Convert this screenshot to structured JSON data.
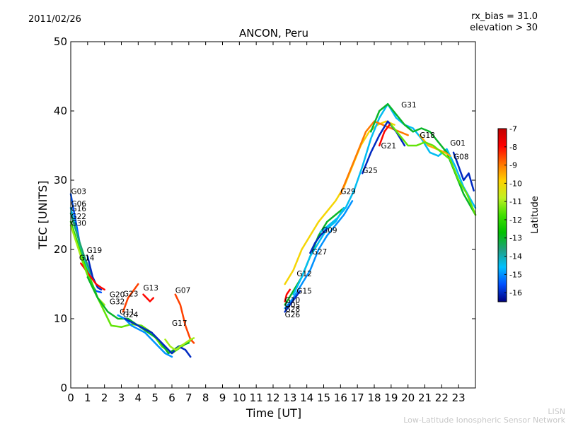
{
  "chart_data": {
    "type": "line",
    "title": "ANCON, Peru",
    "date": "2011/02/26",
    "rx_bias": "rx_bias = 31.0",
    "elevation": "elevation > 30",
    "xlabel": "Time [UT]",
    "ylabel": "TEC [UNITS]",
    "xlim": [
      0,
      24
    ],
    "ylim": [
      0,
      50
    ],
    "xticks": [
      "0",
      "1",
      "2",
      "3",
      "4",
      "5",
      "6",
      "7",
      "8",
      "9",
      "10",
      "11",
      "12",
      "13",
      "14",
      "15",
      "16",
      "17",
      "18",
      "19",
      "20",
      "21",
      "22",
      "23"
    ],
    "yticks": [
      "0",
      "10",
      "20",
      "30",
      "40",
      "50"
    ],
    "colorbar": {
      "label": "Latitude",
      "range": [
        -16.5,
        -7
      ],
      "ticks": [
        "-7",
        "-8",
        "-9",
        "-10",
        "-11",
        "-12",
        "-13",
        "-14",
        "-15",
        "-16"
      ],
      "colors": [
        "#00007f",
        "#0050ff",
        "#00c0ff",
        "#20a080",
        "#00c000",
        "#40e000",
        "#c0f020",
        "#ffd000",
        "#ff7000",
        "#ff0000",
        "#c00000"
      ]
    },
    "series": [
      {
        "name": "G03",
        "lat": -15.5,
        "label_pos": [
          0.02,
          28
        ],
        "x": [
          0,
          0.3,
          0.6,
          0.9,
          1.2,
          1.5,
          1.8
        ],
        "y": [
          28,
          24,
          20,
          17,
          15,
          14,
          13.8
        ]
      },
      {
        "name": "G06",
        "lat": -14.5,
        "label_pos": [
          0.02,
          26.2
        ],
        "x": [
          0,
          0.3,
          0.6,
          0.9,
          1.2
        ],
        "y": [
          26,
          23,
          20,
          18,
          16
        ]
      },
      {
        "name": "G16",
        "lat": -13.5,
        "label_pos": [
          0.02,
          25.5
        ],
        "x": [
          0,
          0.4,
          0.8,
          1.2
        ],
        "y": [
          25.2,
          22,
          19,
          16.5
        ]
      },
      {
        "name": "G22",
        "lat": -12,
        "label_pos": [
          0.02,
          24.4
        ],
        "x": [
          0,
          0.4,
          0.8,
          1.2,
          1.6
        ],
        "y": [
          24,
          21,
          18,
          15.5,
          13
        ]
      },
      {
        "name": "G30",
        "lat": -11,
        "label_pos": [
          0.02,
          23.4
        ],
        "x": [
          0,
          0.4,
          0.8,
          1.2,
          1.6,
          2.0
        ],
        "y": [
          23.5,
          20.5,
          17.5,
          15,
          13,
          12
        ]
      },
      {
        "name": "G19",
        "lat": -16,
        "label_pos": [
          0.95,
          19.5
        ],
        "x": [
          1.0,
          1.3,
          1.6,
          1.8
        ],
        "y": [
          19,
          16,
          14.5,
          14.2
        ]
      },
      {
        "name": "G14",
        "lat": -8,
        "label_pos": [
          0.5,
          18.4
        ],
        "x": [
          0.6,
          0.9,
          1.2,
          1.5,
          1.8,
          2.0
        ],
        "y": [
          18,
          17,
          16,
          15,
          14.5,
          14.2
        ]
      },
      {
        "name": "G20",
        "lat": -11.5,
        "label_pos": [
          2.3,
          13.1
        ],
        "x": [
          0.6,
          1.2,
          1.8,
          2.4,
          3.0,
          3.6,
          4.2,
          4.8,
          5.4,
          6.0,
          6.6,
          7.2
        ],
        "y": [
          19,
          15,
          12,
          9,
          8.8,
          9.2,
          9,
          8,
          6,
          5,
          6,
          7
        ]
      },
      {
        "name": "G32",
        "lat": -13,
        "label_pos": [
          2.3,
          12.1
        ],
        "x": [
          1.0,
          1.6,
          2.2,
          2.8,
          3.4,
          4.0,
          4.6,
          5.2,
          5.8,
          6.4,
          7.0
        ],
        "y": [
          16,
          13,
          11,
          10,
          10,
          9,
          8,
          7,
          5,
          6,
          6.5
        ]
      },
      {
        "name": "G23",
        "lat": -8.5,
        "label_pos": [
          3.1,
          13.2
        ],
        "x": [
          3.1,
          3.4,
          3.7,
          4.0
        ],
        "y": [
          11,
          13,
          14,
          15
        ]
      },
      {
        "name": "G13",
        "lat": -8,
        "label_pos": [
          4.3,
          14.1
        ],
        "x": [
          4.3,
          4.5,
          4.7,
          4.9
        ],
        "y": [
          13.5,
          13,
          12.5,
          13
        ]
      },
      {
        "name": "G11",
        "lat": -15,
        "label_pos": [
          2.9,
          10.6
        ],
        "x": [
          2.8,
          3.2,
          3.6,
          4.0,
          4.4,
          4.8,
          5.2,
          5.6,
          6.0
        ],
        "y": [
          10.5,
          10,
          9,
          8.5,
          8,
          7,
          6,
          5,
          4.5
        ]
      },
      {
        "name": "G24",
        "lat": -16,
        "label_pos": [
          3.1,
          10.2
        ],
        "x": [
          3.2,
          3.6,
          4.0,
          4.4,
          4.8,
          5.2,
          5.6,
          6.0,
          6.4,
          6.8,
          7.1
        ],
        "y": [
          10,
          9.5,
          9,
          8.5,
          8,
          7,
          6,
          5,
          6,
          5.5,
          4.5
        ]
      },
      {
        "name": "G07",
        "lat": -8.5,
        "label_pos": [
          6.2,
          13.7
        ],
        "x": [
          6.2,
          6.5,
          6.8,
          7.1,
          7.3
        ],
        "y": [
          13.5,
          12,
          9,
          7,
          6.5
        ]
      },
      {
        "name": "G17",
        "lat": -11,
        "label_pos": [
          6.0,
          9.0
        ],
        "x": [
          5.6,
          5.9,
          6.2,
          6.5,
          6.8,
          7.1,
          7.3
        ],
        "y": [
          7,
          6,
          5.5,
          6,
          6.5,
          7,
          7.2
        ]
      },
      {
        "name": "G10",
        "lat": -8,
        "label_pos": [
          12.7,
          12.3
        ],
        "x": [
          12.7,
          12.8,
          13.0
        ],
        "y": [
          12.5,
          13.5,
          14.2
        ]
      },
      {
        "name": "G05",
        "lat": -13,
        "label_pos": [
          12.7,
          11.6
        ],
        "x": [
          12.7,
          13.2,
          13.7,
          14.2,
          14.7,
          15.2,
          15.7,
          16.2
        ],
        "y": [
          12,
          14,
          16,
          19,
          22,
          24,
          25,
          26
        ]
      },
      {
        "name": "G28",
        "lat": -15,
        "label_pos": [
          12.7,
          11.0
        ],
        "x": [
          12.7,
          13.2,
          13.7,
          14.2,
          14.7,
          15.2,
          15.7,
          16.2,
          16.7
        ],
        "y": [
          11.5,
          13,
          15,
          17,
          20,
          22,
          23.5,
          25,
          27
        ]
      },
      {
        "name": "G26",
        "lat": -16,
        "label_pos": [
          12.7,
          10.2
        ],
        "x": [
          12.7,
          13.0,
          13.3,
          13.6
        ],
        "y": [
          11,
          12,
          13,
          14
        ]
      },
      {
        "name": "G12",
        "lat": -10,
        "label_pos": [
          13.4,
          16.1
        ],
        "x": [
          12.7,
          13.2,
          13.7,
          14.2,
          14.7,
          15.2,
          15.7,
          16.2,
          16.7,
          17.2,
          17.7,
          18.2,
          18.7,
          19.2
        ],
        "y": [
          15,
          17,
          20,
          22,
          24,
          25.5,
          27,
          29,
          32,
          35,
          37,
          38,
          38.5,
          38
        ]
      },
      {
        "name": "G15",
        "lat": -14.5,
        "label_pos": [
          13.4,
          13.6
        ],
        "x": [
          13.2,
          13.7,
          14.2,
          14.7,
          15.2,
          15.7,
          16.2
        ],
        "y": [
          13.5,
          16,
          19,
          21,
          23,
          24,
          26
        ]
      },
      {
        "name": "G27",
        "lat": -16,
        "label_pos": [
          14.3,
          19.3
        ],
        "x": [
          14.2,
          14.5,
          14.8,
          15.2
        ],
        "y": [
          19.5,
          21,
          22,
          23
        ]
      },
      {
        "name": "G09",
        "lat": -14.5,
        "label_pos": [
          14.9,
          22.4
        ],
        "x": [
          14.8,
          15.3,
          15.8,
          16.3,
          16.8,
          17.3,
          17.8,
          18.3,
          18.8,
          19.3,
          19.8,
          20.3,
          20.8,
          21.3,
          21.8,
          22.3,
          22.8,
          23.3,
          24.0
        ],
        "y": [
          22.5,
          23.5,
          24.5,
          26,
          28.5,
          32,
          36,
          39,
          41,
          39,
          38,
          37.5,
          36,
          34,
          33.5,
          34.5,
          32,
          29,
          26
        ]
      },
      {
        "name": "G29",
        "lat": -9,
        "label_pos": [
          16.0,
          28.0
        ],
        "x": [
          16.0,
          16.5,
          17.0,
          17.5,
          18.0,
          18.5,
          19.0,
          19.5,
          20.0
        ],
        "y": [
          28,
          31,
          34,
          37,
          38.5,
          38,
          37.5,
          37,
          36.5
        ]
      },
      {
        "name": "G25",
        "lat": -16,
        "label_pos": [
          17.3,
          31.0
        ],
        "x": [
          17.3,
          17.8,
          18.3,
          18.8,
          19.3,
          19.8
        ],
        "y": [
          31,
          34,
          36.5,
          38.5,
          37,
          35
        ]
      },
      {
        "name": "G21",
        "lat": -8,
        "label_pos": [
          18.4,
          34.6
        ],
        "x": [
          18.3,
          18.6,
          18.9
        ],
        "y": [
          35,
          37,
          38
        ]
      },
      {
        "name": "G31",
        "lat": -13,
        "label_pos": [
          19.6,
          40.5
        ],
        "x": [
          17.8,
          18.3,
          18.8,
          19.3,
          19.8,
          20.3,
          20.8,
          21.3,
          21.8,
          22.3,
          22.8,
          23.3,
          24.0
        ],
        "y": [
          37,
          40,
          41,
          39.5,
          38,
          37,
          37.5,
          37,
          35.5,
          34,
          31,
          28,
          25
        ]
      },
      {
        "name": "G18",
        "lat": -9.5,
        "label_pos": [
          20.7,
          36.1
        ],
        "x": [
          20.7,
          21.2,
          21.7,
          22.2,
          22.5
        ],
        "y": [
          36.5,
          35,
          34.5,
          34,
          33.5
        ]
      },
      {
        "name": "G01",
        "lat": -11.5,
        "label_pos": [
          22.5,
          35
        ],
        "x": [
          19.0,
          19.5,
          20.0,
          20.5,
          21.0,
          21.5,
          22.0,
          22.5,
          23.0,
          23.5,
          24.0
        ],
        "y": [
          38,
          36.5,
          35,
          35,
          35.5,
          35,
          34,
          33,
          30,
          28,
          25
        ]
      },
      {
        "name": "G08",
        "lat": -16,
        "label_pos": [
          22.7,
          33.0
        ],
        "x": [
          22.7,
          23.0,
          23.3,
          23.6,
          23.9
        ],
        "y": [
          34,
          32,
          30,
          31,
          28.5
        ]
      }
    ]
  },
  "footer": {
    "org_short": "LISN",
    "org_full": "Low-Latitude Ionospheric Sensor Network"
  }
}
